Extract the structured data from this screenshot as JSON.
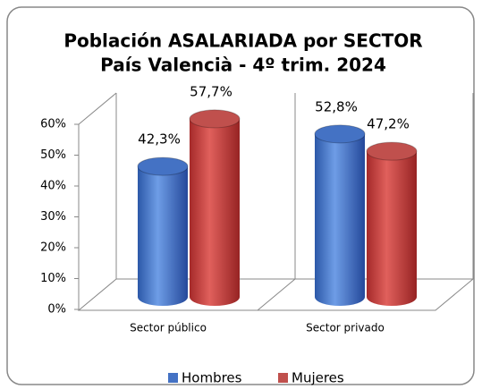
{
  "chart_data": {
    "type": "bar",
    "title": "Población ASALARIADA por SECTOR",
    "subtitle": "País Valencià - 4º trim. 2024",
    "categories": [
      "Sector público",
      "Sector privado"
    ],
    "series": [
      {
        "name": "Hombres",
        "color": "#4472c4",
        "values": [
          42.3,
          52.8
        ],
        "value_labels": [
          "42,3%",
          "52,8%"
        ]
      },
      {
        "name": "Mujeres",
        "color": "#c0504d",
        "values": [
          57.7,
          47.2
        ],
        "value_labels": [
          "57,7%",
          "47,2%"
        ]
      }
    ],
    "ylim": [
      0,
      60
    ],
    "yticks": [
      {
        "value": 0,
        "label": "0%"
      },
      {
        "value": 10,
        "label": "10%"
      },
      {
        "value": 20,
        "label": "20%"
      },
      {
        "value": 30,
        "label": "30%"
      },
      {
        "value": 40,
        "label": "40%"
      },
      {
        "value": 50,
        "label": "50%"
      },
      {
        "value": 60,
        "label": "60%"
      }
    ],
    "legend": "bottom"
  }
}
